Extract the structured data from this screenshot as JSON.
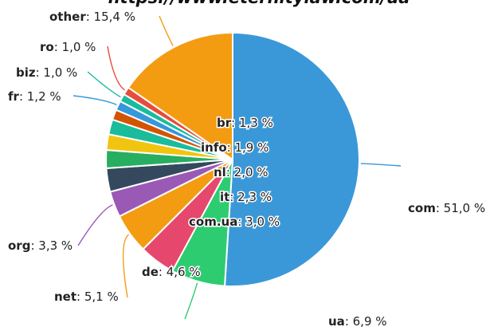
{
  "chart_data": {
    "type": "pie",
    "title": "https://www.eternitylaw.com/ua",
    "slices": [
      {
        "name": "com",
        "value": 51.0,
        "display": "51,0 %",
        "color": "#3a98d8"
      },
      {
        "name": "ua",
        "value": 6.9,
        "display": "6,9 %",
        "color": "#2ecc71"
      },
      {
        "name": "de",
        "value": 4.6,
        "display": "4,6 %",
        "color": "#e5486c"
      },
      {
        "name": "net",
        "value": 5.1,
        "display": "5,1 %",
        "color": "#f39c12"
      },
      {
        "name": "org",
        "value": 3.3,
        "display": "3,3 %",
        "color": "#9b59b6"
      },
      {
        "name": "com.ua",
        "value": 3.0,
        "display": "3,0 %",
        "color": "#34495e"
      },
      {
        "name": "it",
        "value": 2.3,
        "display": "2,3 %",
        "color": "#27ae60"
      },
      {
        "name": "nl",
        "value": 2.0,
        "display": "2,0 %",
        "color": "#f1c40f"
      },
      {
        "name": "info",
        "value": 1.9,
        "display": "1,9 %",
        "color": "#1abc9c"
      },
      {
        "name": "br",
        "value": 1.3,
        "display": "1,3 %",
        "color": "#d35400"
      },
      {
        "name": "fr",
        "value": 1.2,
        "display": "1,2 %",
        "color": "#3498db"
      },
      {
        "name": "biz",
        "value": 1.0,
        "display": "1,0 %",
        "color": "#1abc9c"
      },
      {
        "name": "ro",
        "value": 1.0,
        "display": "1,0 %",
        "color": "#e74c3c"
      },
      {
        "name": "other",
        "value": 15.4,
        "display": "15,4 %",
        "color": "#f39c12"
      }
    ]
  }
}
